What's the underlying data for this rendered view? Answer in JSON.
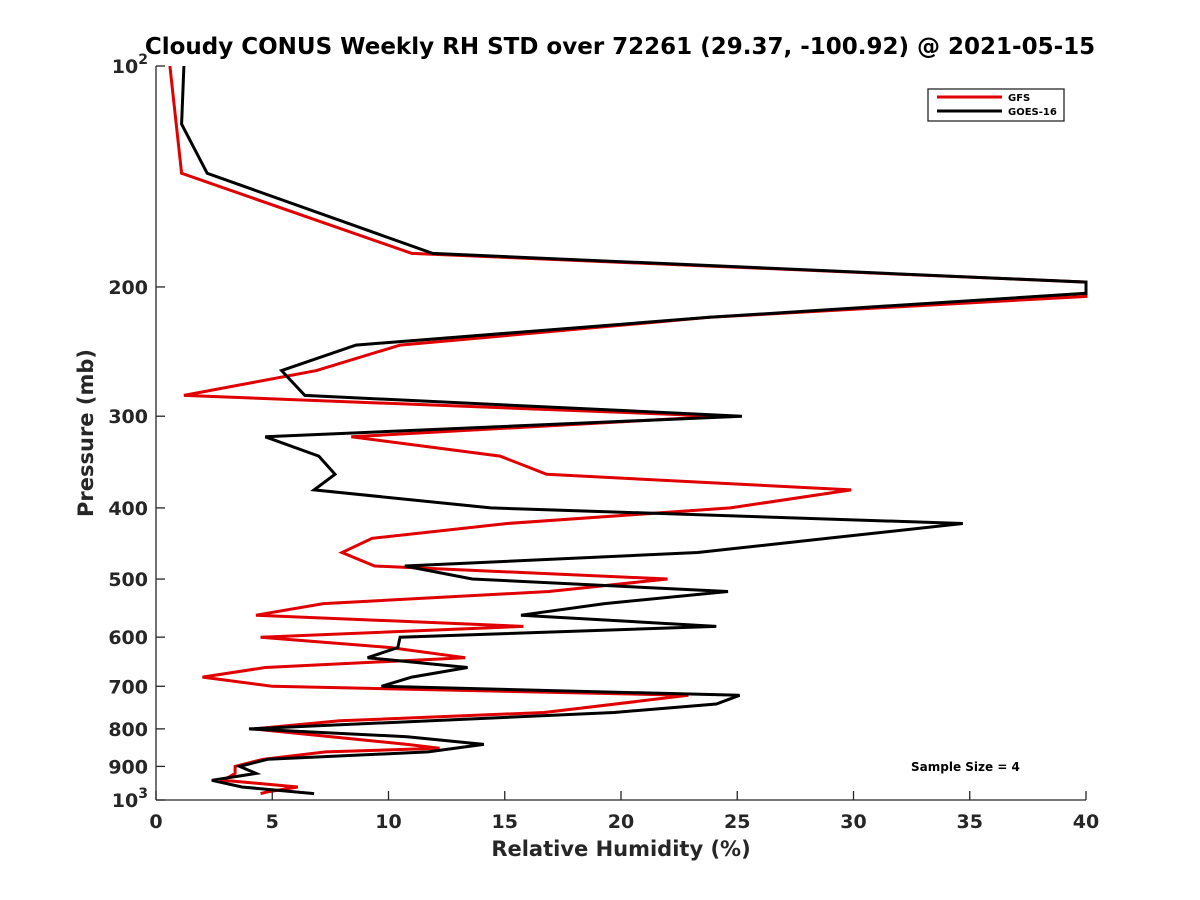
{
  "chart_data": {
    "type": "line",
    "title": "Cloudy CONUS Weekly RH STD over 72261 (29.37, -100.92) @ 2021-05-15",
    "xlabel": "Relative Humidity (%)",
    "ylabel": "Pressure (mb)",
    "xlim": [
      0,
      40
    ],
    "ylim": [
      1000,
      100
    ],
    "yscale": "log",
    "yreversed": true,
    "grid": false,
    "x_ticks": [
      {
        "value": 0,
        "label": "0"
      },
      {
        "value": 5,
        "label": "5"
      },
      {
        "value": 10,
        "label": "10"
      },
      {
        "value": 15,
        "label": "15"
      },
      {
        "value": 20,
        "label": "20"
      },
      {
        "value": 25,
        "label": "25"
      },
      {
        "value": 30,
        "label": "30"
      },
      {
        "value": 35,
        "label": "35"
      },
      {
        "value": 40,
        "label": "40"
      }
    ],
    "y_ticks": [
      {
        "value": 100,
        "label": "10",
        "sup": "2"
      },
      {
        "value": 200,
        "label": "200"
      },
      {
        "value": 300,
        "label": "300"
      },
      {
        "value": 400,
        "label": "400"
      },
      {
        "value": 500,
        "label": "500"
      },
      {
        "value": 600,
        "label": "600"
      },
      {
        "value": 700,
        "label": "700"
      },
      {
        "value": 800,
        "label": "800"
      },
      {
        "value": 900,
        "label": "900"
      },
      {
        "value": 1000,
        "label": "10",
        "sup": "3"
      }
    ],
    "legend": {
      "position": "top-right"
    },
    "annotation": "Sample Size = 4",
    "series": [
      {
        "name": "GFS",
        "color": "#e00000",
        "points": [
          [
            0.6,
            100
          ],
          [
            1.1,
            140
          ],
          [
            11.0,
            180
          ],
          [
            40.0,
            197
          ],
          [
            40.0,
            206
          ],
          [
            23.8,
            220
          ],
          [
            10.5,
            240
          ],
          [
            6.9,
            260
          ],
          [
            1.2,
            281
          ],
          [
            24.3,
            300
          ],
          [
            8.4,
            320
          ],
          [
            14.8,
            340
          ],
          [
            16.8,
            360
          ],
          [
            29.9,
            378
          ],
          [
            24.7,
            400
          ],
          [
            15.1,
            420
          ],
          [
            9.3,
            440
          ],
          [
            8.0,
            460
          ],
          [
            9.4,
            480
          ],
          [
            22.0,
            500
          ],
          [
            16.9,
            520
          ],
          [
            7.2,
            540
          ],
          [
            4.3,
            560
          ],
          [
            15.8,
            580
          ],
          [
            4.5,
            600
          ],
          [
            10.1,
            620
          ],
          [
            13.3,
            640
          ],
          [
            4.7,
            660
          ],
          [
            2.0,
            680
          ],
          [
            5.0,
            700
          ],
          [
            22.9,
            720
          ],
          [
            16.7,
            760
          ],
          [
            7.9,
            780
          ],
          [
            4.2,
            800
          ],
          [
            10.8,
            840
          ],
          [
            12.2,
            850
          ],
          [
            7.3,
            860
          ],
          [
            4.6,
            880
          ],
          [
            3.4,
            900
          ],
          [
            3.4,
            920
          ],
          [
            2.9,
            940
          ],
          [
            6.1,
            960
          ],
          [
            4.8,
            975
          ],
          [
            4.5,
            980
          ]
        ]
      },
      {
        "name": "GOES-16",
        "color": "#000000",
        "points": [
          [
            1.2,
            100
          ],
          [
            1.1,
            120
          ],
          [
            2.2,
            140
          ],
          [
            11.9,
            180
          ],
          [
            40.0,
            197
          ],
          [
            40.0,
            204
          ],
          [
            23.8,
            220
          ],
          [
            8.6,
            240
          ],
          [
            5.4,
            260
          ],
          [
            6.4,
            281
          ],
          [
            25.2,
            300
          ],
          [
            4.7,
            320
          ],
          [
            7.0,
            340
          ],
          [
            7.7,
            360
          ],
          [
            6.8,
            378
          ],
          [
            14.4,
            400
          ],
          [
            34.7,
            420
          ],
          [
            28.9,
            440
          ],
          [
            23.3,
            460
          ],
          [
            10.7,
            480
          ],
          [
            13.6,
            500
          ],
          [
            24.6,
            520
          ],
          [
            19.3,
            540
          ],
          [
            15.7,
            560
          ],
          [
            24.1,
            580
          ],
          [
            10.5,
            600
          ],
          [
            10.4,
            620
          ],
          [
            9.1,
            640
          ],
          [
            13.4,
            660
          ],
          [
            11.0,
            680
          ],
          [
            9.7,
            700
          ],
          [
            25.1,
            720
          ],
          [
            24.1,
            740
          ],
          [
            19.7,
            760
          ],
          [
            4.0,
            800
          ],
          [
            10.8,
            820
          ],
          [
            14.1,
            840
          ],
          [
            11.7,
            860
          ],
          [
            4.8,
            880
          ],
          [
            3.6,
            900
          ],
          [
            4.3,
            920
          ],
          [
            2.4,
            940
          ],
          [
            3.7,
            960
          ],
          [
            6.8,
            980
          ]
        ]
      }
    ]
  }
}
